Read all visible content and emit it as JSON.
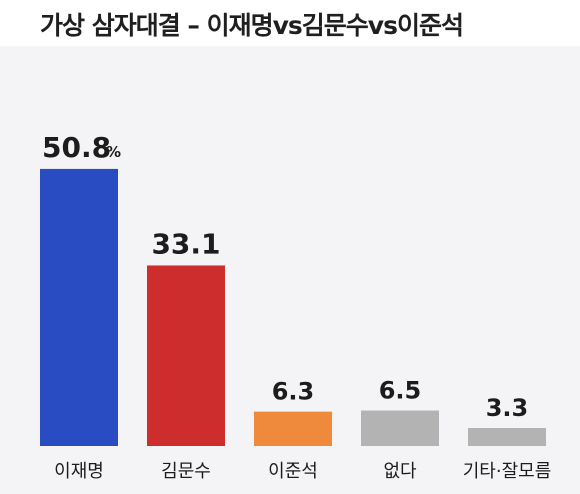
{
  "title": "가상 삼자대결 – 이재명vs김문수vs이준석",
  "chart_data": {
    "type": "bar",
    "title": "가상 삼자대결 – 이재명vs김문수vs이준석",
    "categories": [
      "이재명",
      "김문수",
      "이준석",
      "없다",
      "기타·잘모름"
    ],
    "values": [
      50.8,
      33.1,
      6.3,
      6.5,
      3.3
    ],
    "value_labels": [
      "50.8",
      "33.1",
      "6.3",
      "6.5",
      "3.3"
    ],
    "unit": "%",
    "colors": [
      "#2a4cc2",
      "#cd2d2d",
      "#ef8a3d",
      "#b3b3b3",
      "#b3b3b3"
    ],
    "ylim": [
      0,
      55
    ],
    "grid": false,
    "legend": "none",
    "xlabel": "",
    "ylabel": ""
  }
}
